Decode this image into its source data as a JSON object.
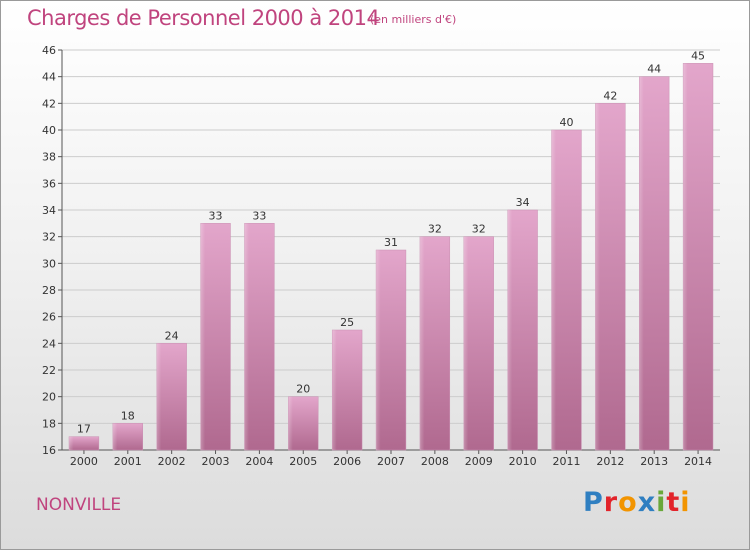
{
  "header": {
    "title": "Charges de Personnel 2000 à 2014",
    "subtitle": "(en milliers d'€)"
  },
  "footer": {
    "commune": "NONVILLE",
    "logo": "Proxiti",
    "logo_letters": [
      {
        "ch": "P",
        "color": "#2f7fc1"
      },
      {
        "ch": "r",
        "color": "#e2232a"
      },
      {
        "ch": "o",
        "color": "#f29400"
      },
      {
        "ch": "x",
        "color": "#2f7fc1"
      },
      {
        "ch": "i",
        "color": "#69a83a"
      },
      {
        "ch": "t",
        "color": "#e2232a"
      },
      {
        "ch": "i",
        "color": "#f29400"
      }
    ]
  },
  "colors": {
    "bar_top": "#e3a6cb",
    "bar_bottom": "#b0698f",
    "accent": "#c0447e",
    "grid": "#cccccc"
  },
  "chart_data": {
    "type": "bar",
    "title": "Charges de Personnel 2000 à 2014",
    "subtitle": "(en milliers d'€)",
    "categories": [
      "2000",
      "2001",
      "2002",
      "2003",
      "2004",
      "2005",
      "2006",
      "2007",
      "2008",
      "2009",
      "2010",
      "2011",
      "2012",
      "2013",
      "2014"
    ],
    "values": [
      17,
      18,
      24,
      33,
      33,
      20,
      25,
      31,
      32,
      32,
      34,
      40,
      42,
      44,
      45
    ],
    "ylim": [
      16,
      46
    ],
    "yticks": [
      16,
      18,
      20,
      22,
      24,
      26,
      28,
      30,
      32,
      34,
      36,
      38,
      40,
      42,
      44,
      46
    ],
    "xlabel": "",
    "ylabel": "",
    "grid": true,
    "data_labels": true
  }
}
